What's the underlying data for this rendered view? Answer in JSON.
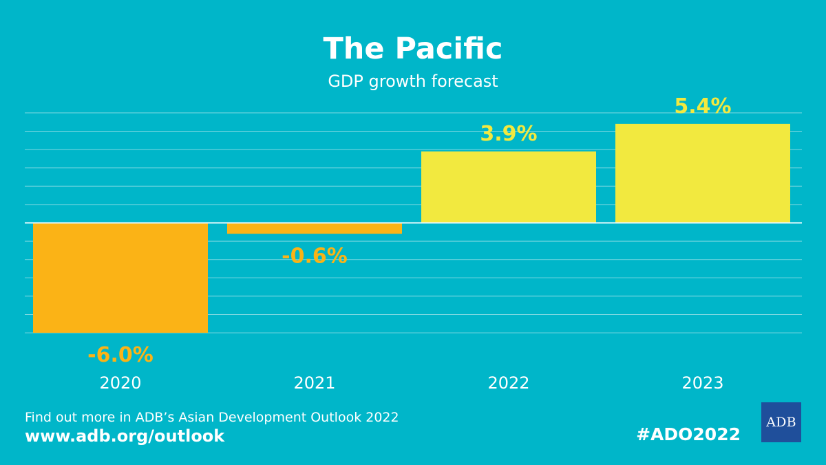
{
  "header": {
    "title": "The Pacific",
    "subtitle": "GDP growth forecast"
  },
  "footer": {
    "text": "Find out more in ADB’s Asian Development Outlook 2022",
    "url": "www.adb.org/outlook",
    "hashtag": "#ADO2022",
    "logo_text": "ADB"
  },
  "colors": {
    "background": "#00b6c9",
    "gridline": "#7ed8e1",
    "zero_line": "#e6fbfd",
    "negative": "#fbb316",
    "positive": "#f2e93f",
    "text": "#ffffff"
  },
  "chart_data": {
    "type": "bar",
    "title": "The Pacific",
    "subtitle": "GDP growth forecast",
    "categories": [
      "2020",
      "2021",
      "2022",
      "2023"
    ],
    "values": [
      -6.0,
      -0.6,
      3.9,
      5.4
    ],
    "data_labels": [
      "-6.0%",
      "-0.6%",
      "3.9%",
      "5.4%"
    ],
    "xlabel": "",
    "ylabel": "",
    "ylim": [
      -6.0,
      6.0
    ],
    "grid": true,
    "legend": "none"
  }
}
